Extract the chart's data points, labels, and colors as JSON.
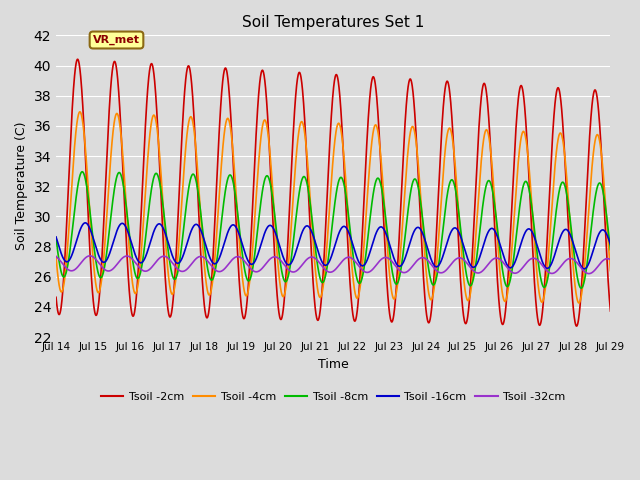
{
  "title": "Soil Temperatures Set 1",
  "xlabel": "Time",
  "ylabel": "Soil Temperature (C)",
  "ylim": [
    22,
    42
  ],
  "yticks": [
    22,
    24,
    26,
    28,
    30,
    32,
    34,
    36,
    38,
    40,
    42
  ],
  "background_color": "#dcdcdc",
  "plot_bg": "#dcdcdc",
  "annotation_text": "VR_met",
  "annotation_box_color": "#ffff99",
  "annotation_text_color": "#8b0000",
  "series": {
    "Tsoil -2cm": {
      "color": "#cc0000",
      "lw": 1.2
    },
    "Tsoil -4cm": {
      "color": "#ff8c00",
      "lw": 1.2
    },
    "Tsoil -8cm": {
      "color": "#00bb00",
      "lw": 1.2
    },
    "Tsoil -16cm": {
      "color": "#0000cc",
      "lw": 1.2
    },
    "Tsoil -32cm": {
      "color": "#9932cc",
      "lw": 1.2
    }
  },
  "x_tick_labels": [
    "Jul 14",
    "Jul 15",
    "Jul 16",
    "Jul 17",
    "Jul 18",
    "Jul 19",
    "Jul 20",
    "Jul 21",
    "Jul 22",
    "Jul 23",
    "Jul 24",
    "Jul 25",
    "Jul 26",
    "Jul 27",
    "Jul 28",
    "Jul 29"
  ],
  "x_tick_positions": [
    0,
    24,
    48,
    72,
    96,
    120,
    144,
    168,
    192,
    216,
    240,
    264,
    288,
    312,
    336,
    360
  ]
}
